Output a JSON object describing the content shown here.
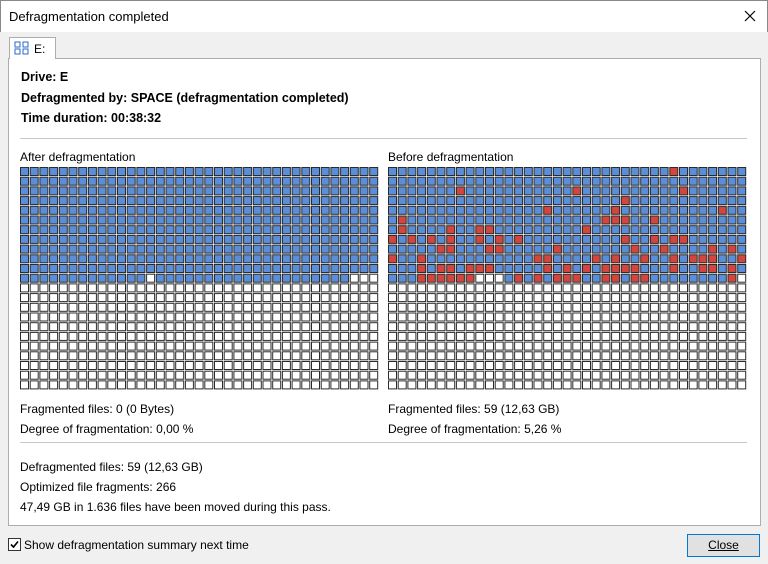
{
  "window": {
    "title": "Defragmentation completed",
    "close_button": "Close"
  },
  "tab": {
    "label": "E:"
  },
  "summary": {
    "drive": "Drive: E",
    "defragmented_by": "Defragmented by: SPACE (defragmentation completed)",
    "time_duration": "Time duration: 00:38:32"
  },
  "after": {
    "heading": "After defragmentation",
    "fragmented_files": "Fragmented files: 0 (0 Bytes)",
    "degree": "Degree of fragmentation: 0,00 %"
  },
  "before": {
    "heading": "Before defragmentation",
    "fragmented_files": "Fragmented files: 59 (12,63 GB)",
    "degree": "Degree of fragmentation: 5,26 %"
  },
  "results": {
    "defragmented_files": "Defragmented files: 59 (12,63 GB)",
    "optimized_fragments": "Optimized file fragments: 266",
    "moved": "47,49 GB in 1.636 files have been moved during this pass."
  },
  "footer": {
    "checkbox_label": "Show defragmentation summary next time"
  }
}
